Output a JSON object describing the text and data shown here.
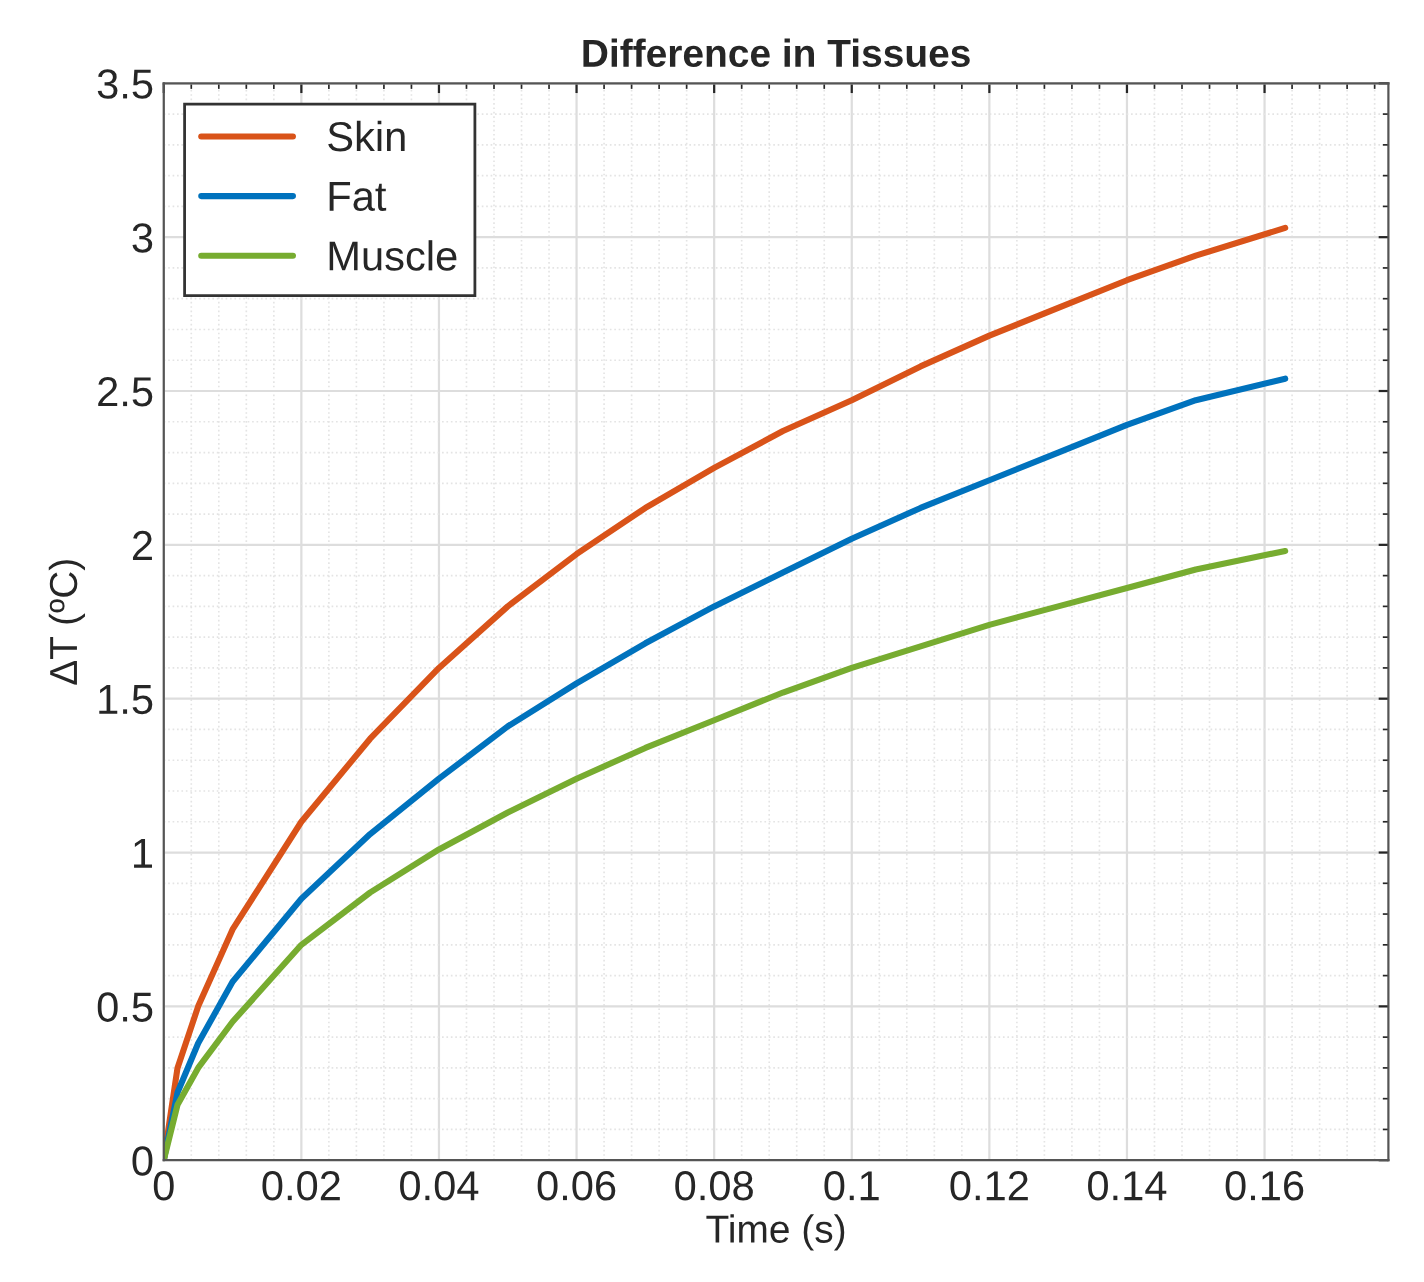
{
  "chart_data": {
    "type": "line",
    "title": "Difference in Tissues",
    "xlabel": "Time (s)",
    "ylabel": "ΔT (ºC)",
    "x": [
      0,
      0.002,
      0.005,
      0.01,
      0.02,
      0.03,
      0.04,
      0.05,
      0.06,
      0.07,
      0.08,
      0.09,
      0.1,
      0.11,
      0.12,
      0.13,
      0.14,
      0.15,
      0.163
    ],
    "series": [
      {
        "name": "Skin",
        "color": "#d95319",
        "values": [
          0,
          0.3,
          0.5,
          0.75,
          1.1,
          1.37,
          1.6,
          1.8,
          1.97,
          2.12,
          2.25,
          2.37,
          2.47,
          2.58,
          2.68,
          2.77,
          2.86,
          2.94,
          3.03
        ]
      },
      {
        "name": "Fat",
        "color": "#0072bd",
        "values": [
          0,
          0.22,
          0.38,
          0.58,
          0.85,
          1.06,
          1.24,
          1.41,
          1.55,
          1.68,
          1.8,
          1.91,
          2.02,
          2.12,
          2.21,
          2.3,
          2.39,
          2.47,
          2.54
        ]
      },
      {
        "name": "Muscle",
        "color": "#77ac30",
        "values": [
          0,
          0.18,
          0.3,
          0.45,
          0.7,
          0.87,
          1.01,
          1.13,
          1.24,
          1.34,
          1.43,
          1.52,
          1.6,
          1.67,
          1.74,
          1.8,
          1.86,
          1.92,
          1.98
        ]
      }
    ],
    "xlim": [
      0,
      0.178
    ],
    "ylim": [
      0,
      3.5
    ],
    "xticks": [
      0,
      0.02,
      0.04,
      0.06,
      0.08,
      0.1,
      0.12,
      0.14,
      0.16
    ],
    "yticks": [
      0,
      0.5,
      1,
      1.5,
      2,
      2.5,
      3,
      3.5
    ],
    "grid": true,
    "legend": "top left",
    "line_style": "solid",
    "marker": "none"
  }
}
